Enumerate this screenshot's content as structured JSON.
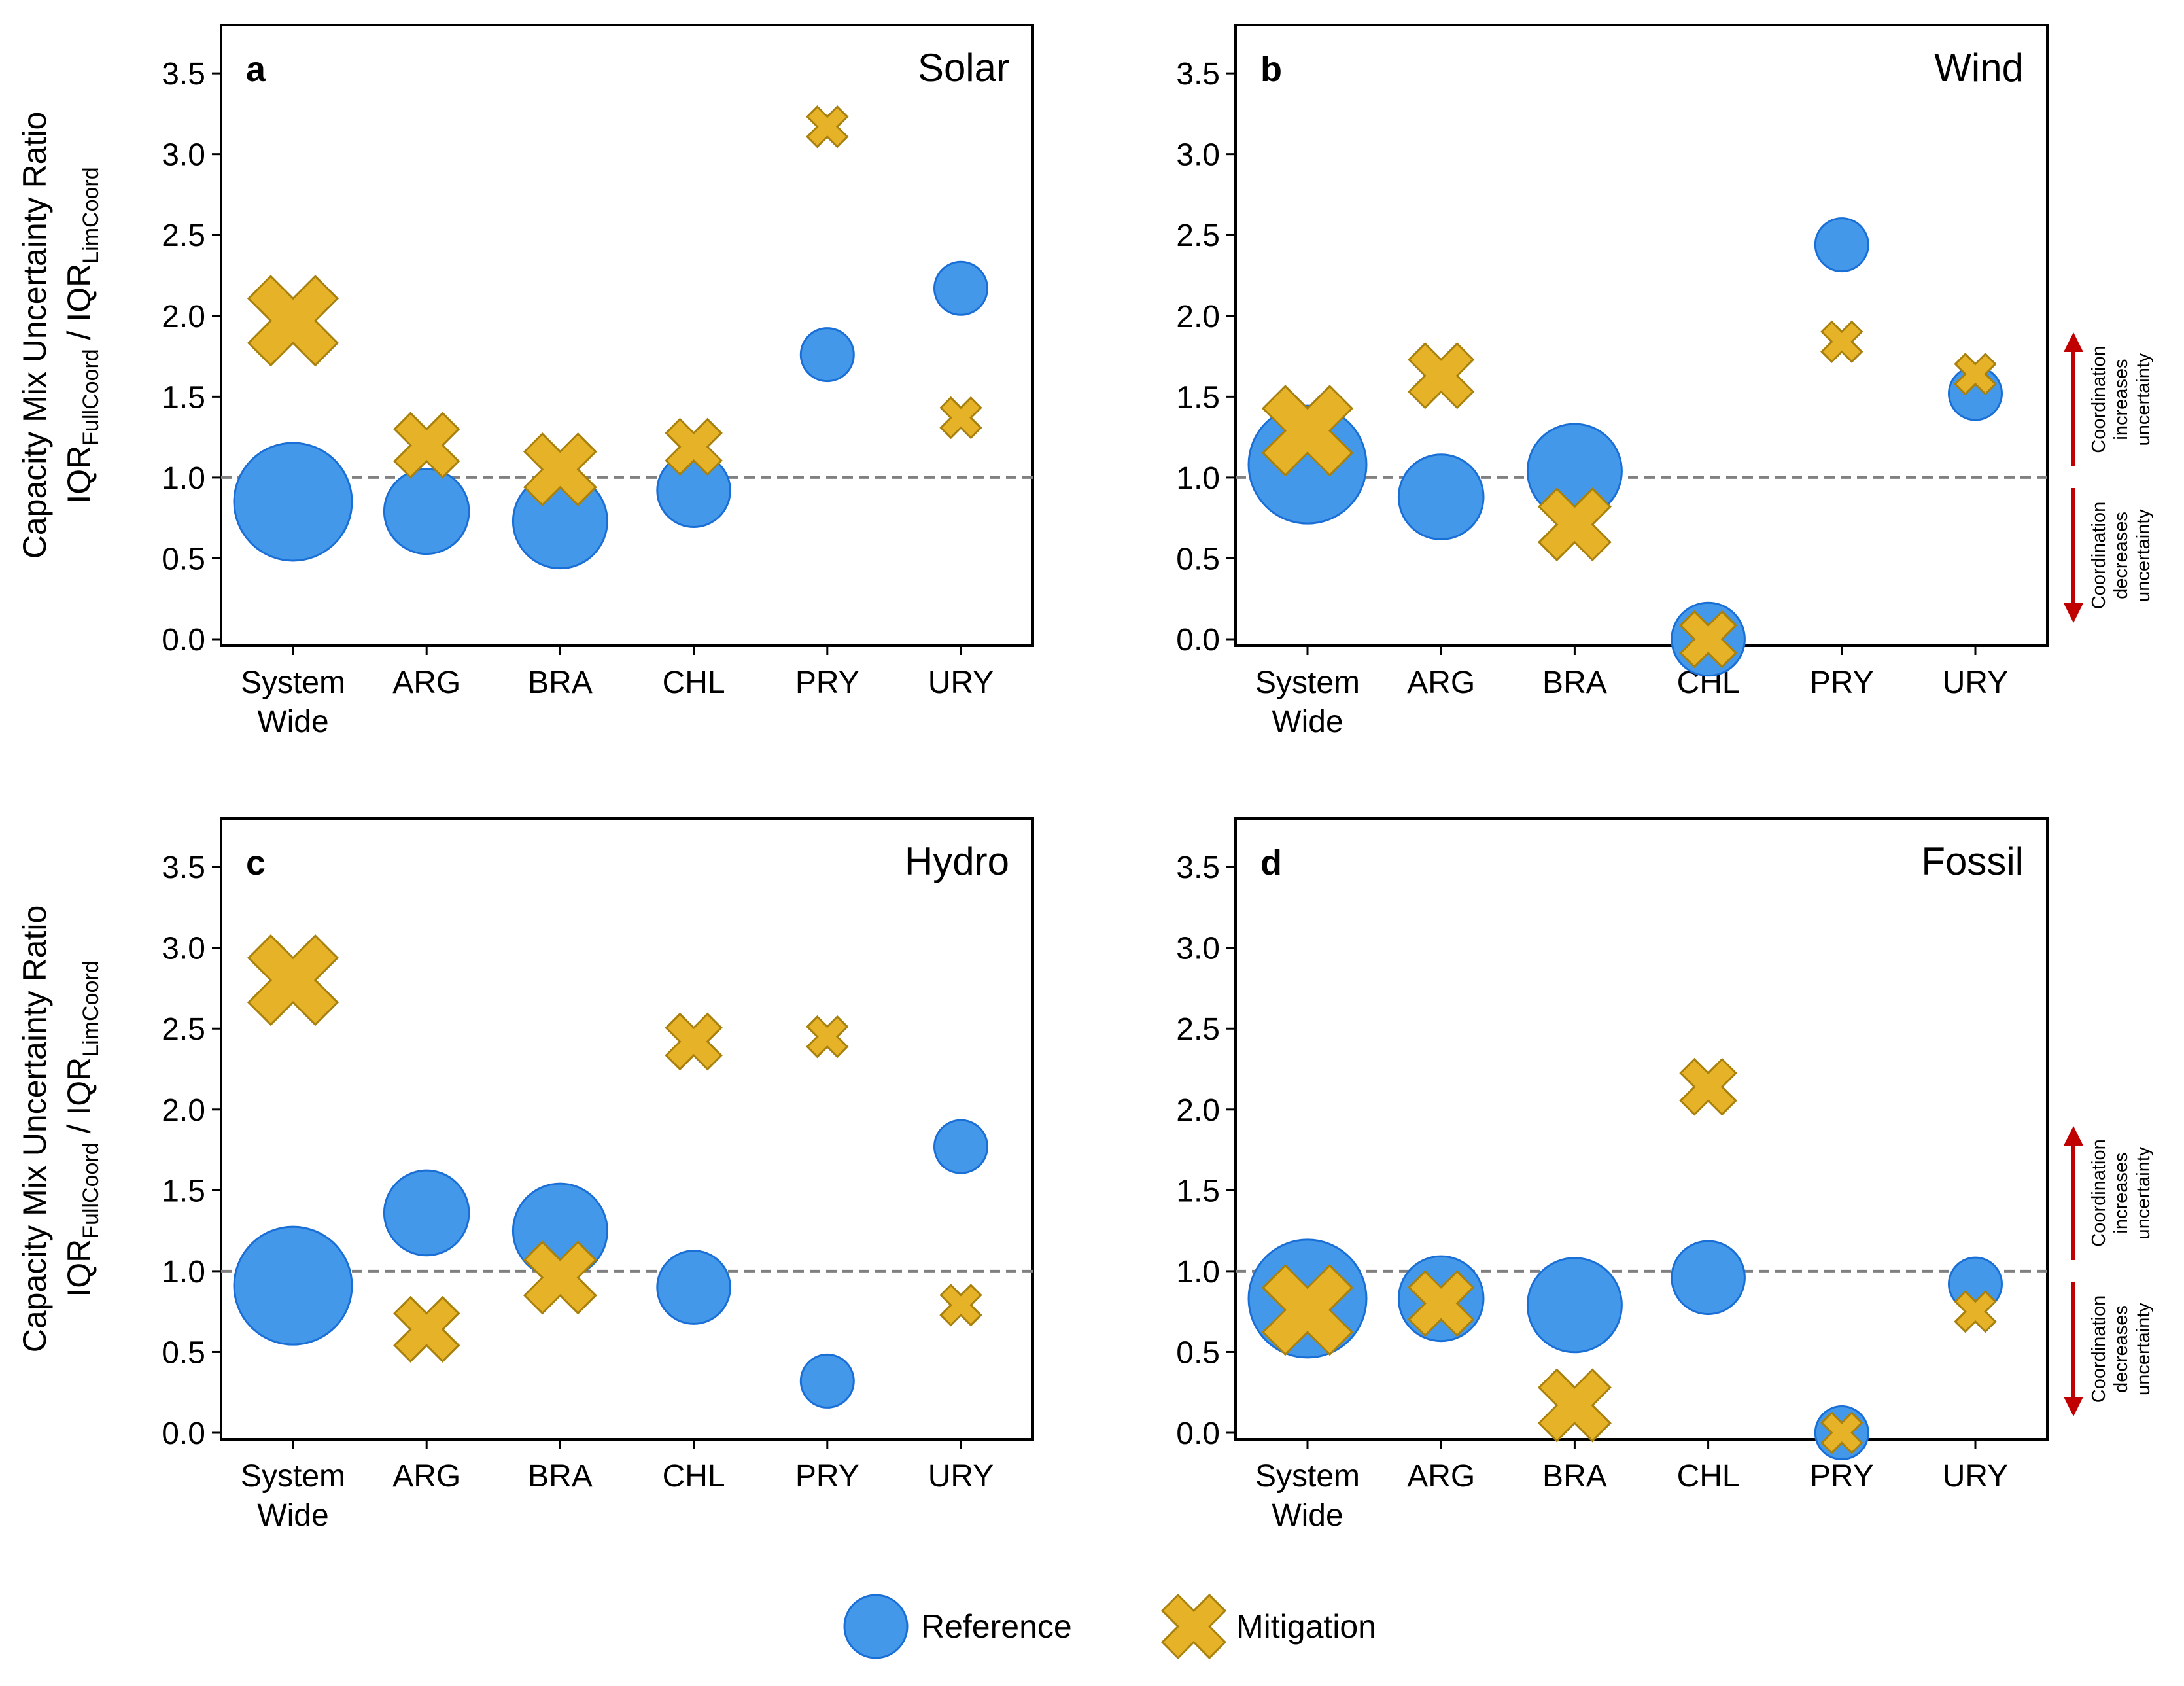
{
  "chart_data": [
    {
      "type": "scatter",
      "panel_letter": "a",
      "title": "Solar",
      "ylabel_line1": "Capacity Mix Uncertainty Ratio",
      "ylabel_line2_parts": [
        "IQR",
        "FullCoord",
        " / IQR",
        "LimCoord"
      ],
      "ylim": [
        0,
        3.8
      ],
      "yticks": [
        "0.0",
        "0.5",
        "1.0",
        "1.5",
        "2.0",
        "2.5",
        "3.0",
        "3.5"
      ],
      "categories": [
        [
          "System",
          "Wide"
        ],
        [
          "ARG"
        ],
        [
          "BRA"
        ],
        [
          "CHL"
        ],
        [
          "PRY"
        ],
        [
          "URY"
        ]
      ],
      "reference_line": 1.0,
      "series": [
        {
          "name": "Reference",
          "marker": "circle",
          "values": [
            0.85,
            0.79,
            0.73,
            0.92,
            1.76,
            2.17
          ],
          "sizes": [
            1.0,
            0.72,
            0.8,
            0.62,
            0.45,
            0.45
          ]
        },
        {
          "name": "Mitigation",
          "marker": "x",
          "values": [
            1.97,
            1.2,
            1.05,
            1.19,
            3.17,
            1.37
          ],
          "sizes": [
            1.0,
            0.72,
            0.8,
            0.62,
            0.45,
            0.45
          ]
        }
      ]
    },
    {
      "type": "scatter",
      "panel_letter": "b",
      "title": "Wind",
      "ylim": [
        0,
        3.8
      ],
      "yticks": [
        "0.0",
        "0.5",
        "1.0",
        "1.5",
        "2.0",
        "2.5",
        "3.0",
        "3.5"
      ],
      "categories": [
        [
          "System",
          "Wide"
        ],
        [
          "ARG"
        ],
        [
          "BRA"
        ],
        [
          "CHL"
        ],
        [
          "PRY"
        ],
        [
          "URY"
        ]
      ],
      "reference_line": 1.0,
      "series": [
        {
          "name": "Reference",
          "marker": "circle",
          "values": [
            1.08,
            0.88,
            1.04,
            0.0,
            2.44,
            1.52
          ],
          "sizes": [
            1.0,
            0.72,
            0.8,
            0.62,
            0.45,
            0.45
          ]
        },
        {
          "name": "Mitigation",
          "marker": "x",
          "values": [
            1.29,
            1.63,
            0.71,
            0.0,
            1.84,
            1.64
          ],
          "sizes": [
            1.0,
            0.72,
            0.8,
            0.62,
            0.45,
            0.45
          ]
        }
      ],
      "annotation": {
        "increases": [
          "Coordination",
          "increases",
          "uncertainty"
        ],
        "decreases": [
          "Coordination",
          "decreases",
          "uncertainty"
        ]
      }
    },
    {
      "type": "scatter",
      "panel_letter": "c",
      "title": "Hydro",
      "ylabel_line1": "Capacity Mix Uncertainty Ratio",
      "ylabel_line2_parts": [
        "IQR",
        "FullCoord",
        " / IQR",
        "LimCoord"
      ],
      "ylim": [
        0,
        3.8
      ],
      "yticks": [
        "0.0",
        "0.5",
        "1.0",
        "1.5",
        "2.0",
        "2.5",
        "3.0",
        "3.5"
      ],
      "categories": [
        [
          "System",
          "Wide"
        ],
        [
          "ARG"
        ],
        [
          "BRA"
        ],
        [
          "CHL"
        ],
        [
          "PRY"
        ],
        [
          "URY"
        ]
      ],
      "reference_line": 1.0,
      "series": [
        {
          "name": "Reference",
          "marker": "circle",
          "values": [
            0.91,
            1.36,
            1.25,
            0.9,
            0.32,
            1.77
          ],
          "sizes": [
            1.0,
            0.72,
            0.8,
            0.62,
            0.45,
            0.45
          ]
        },
        {
          "name": "Mitigation",
          "marker": "x",
          "values": [
            2.8,
            0.64,
            0.96,
            2.42,
            2.45,
            0.79
          ],
          "sizes": [
            1.0,
            0.72,
            0.8,
            0.62,
            0.45,
            0.45
          ]
        }
      ]
    },
    {
      "type": "scatter",
      "panel_letter": "d",
      "title": "Fossil",
      "ylim": [
        0,
        3.8
      ],
      "yticks": [
        "0.0",
        "0.5",
        "1.0",
        "1.5",
        "2.0",
        "2.5",
        "3.0",
        "3.5"
      ],
      "categories": [
        [
          "System",
          "Wide"
        ],
        [
          "ARG"
        ],
        [
          "BRA"
        ],
        [
          "CHL"
        ],
        [
          "PRY"
        ],
        [
          "URY"
        ]
      ],
      "reference_line": 1.0,
      "series": [
        {
          "name": "Reference",
          "marker": "circle",
          "values": [
            0.83,
            0.83,
            0.79,
            0.96,
            0.0,
            0.92
          ],
          "sizes": [
            1.0,
            0.72,
            0.8,
            0.62,
            0.45,
            0.45
          ]
        },
        {
          "name": "Mitigation",
          "marker": "x",
          "values": [
            0.76,
            0.8,
            0.17,
            2.14,
            0.0,
            0.75
          ],
          "sizes": [
            1.0,
            0.72,
            0.8,
            0.62,
            0.45,
            0.45
          ]
        }
      ],
      "annotation": {
        "increases": [
          "Coordination",
          "increases",
          "uncertainty"
        ],
        "decreases": [
          "Coordination",
          "decreases",
          "uncertainty"
        ]
      }
    }
  ],
  "legend": {
    "placement": "bottom-center",
    "items": [
      {
        "label": "Reference",
        "marker": "circle"
      },
      {
        "label": "Mitigation",
        "marker": "x"
      }
    ]
  },
  "colors": {
    "reference_fill": "#4398EA",
    "reference_edge": "#1A6FD6",
    "mitigation_fill": "#E6B228",
    "mitigation_edge": "#A8800E",
    "reference_line": "#808080",
    "arrow": "#C00000",
    "axis": "#000000"
  }
}
